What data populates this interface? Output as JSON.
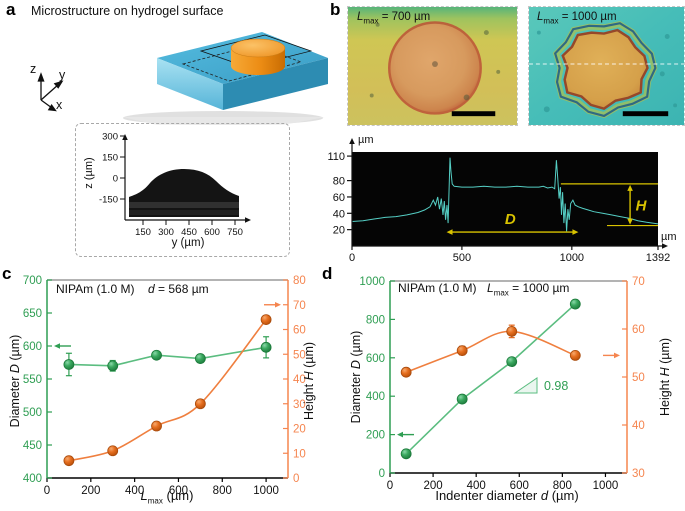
{
  "colors": {
    "green": "#2f9e53",
    "green_line": "#5bbd80",
    "green_dark": "#1b7a3a",
    "orange": "#e2651a",
    "orange_line": "#ef7f3f",
    "orange_axis": "#f5854f",
    "orange_dark": "#a84b0d",
    "cyan_trace": "#55cfc5",
    "yellow_annot": "#d9c300",
    "gray_spine": "#9a9a9a"
  },
  "texts": {
    "panel_a_label": "a",
    "panel_b_label": "b",
    "panel_c_label": "c",
    "panel_d_label": "d",
    "a_title": "Microstructure on hydrogel surface",
    "axis_z": "z",
    "axis_y": "y",
    "axis_x": "x",
    "inset_ylabel": "z (µm)",
    "inset_xlabel": "y (µm)",
    "b1_sym": "L",
    "b1_sub": "max",
    "b1_rest": " = 700 µm",
    "b2_sym": "L",
    "b2_sub": "max",
    "b2_rest": " = 1000 µm",
    "c_nipam": "NIPAm (1.0 M)",
    "c_d_sym": "d",
    "c_d_rest": " = 568 µm",
    "d_nipam": "NIPAm (1.0 M)",
    "d_l_sym": "L",
    "d_l_sub": "max",
    "d_l_rest": " = 1000 µm",
    "diam_pre": "Diameter ",
    "diam_sym": "D",
    "diam_post": " (µm)",
    "height_pre": "Height ",
    "height_sym": "H",
    "height_post": " (µm)",
    "c_x_sym": "L",
    "c_x_sub": "max",
    "c_x_rest": " (µm)",
    "d_x_pre": "Indenter diameter ",
    "d_x_sym": "d",
    "d_x_post": " (µm)"
  },
  "chart_data": {
    "inset_a": {
      "type": "area",
      "description": "Cross-section profile image of microstructure bump on hydrogel",
      "ylabel": "z (µm)",
      "xlabel": "y (µm)",
      "yticks": [
        300,
        150,
        0,
        -150
      ],
      "xticks": [
        150,
        300,
        450,
        600,
        750
      ]
    },
    "profile_b": {
      "type": "line",
      "description": "Surface height profile across microstructure",
      "unit_y": "µm",
      "unit_x": "µm",
      "ylim": [
        0,
        115
      ],
      "yticks": [
        110,
        80,
        60,
        40,
        20
      ],
      "xlim": [
        0,
        1392
      ],
      "xticks": [
        0,
        500,
        1000,
        1392
      ],
      "trace": [
        [
          0,
          30
        ],
        [
          50,
          31
        ],
        [
          100,
          33
        ],
        [
          150,
          35
        ],
        [
          200,
          36
        ],
        [
          250,
          38
        ],
        [
          300,
          41
        ],
        [
          330,
          44
        ],
        [
          355,
          48
        ],
        [
          370,
          56
        ],
        [
          380,
          50
        ],
        [
          390,
          60
        ],
        [
          398,
          45
        ],
        [
          406,
          58
        ],
        [
          414,
          38
        ],
        [
          420,
          55
        ],
        [
          426,
          32
        ],
        [
          432,
          50
        ],
        [
          437,
          28
        ],
        [
          441,
          62
        ],
        [
          446,
          108
        ],
        [
          450,
          92
        ],
        [
          456,
          76
        ],
        [
          465,
          73
        ],
        [
          500,
          72
        ],
        [
          550,
          72
        ],
        [
          600,
          73
        ],
        [
          650,
          72
        ],
        [
          700,
          72
        ],
        [
          750,
          73
        ],
        [
          800,
          72
        ],
        [
          850,
          72
        ],
        [
          870,
          73
        ],
        [
          890,
          71
        ],
        [
          910,
          72
        ],
        [
          922,
          70
        ],
        [
          930,
          105
        ],
        [
          936,
          82
        ],
        [
          942,
          58
        ],
        [
          948,
          72
        ],
        [
          953,
          38
        ],
        [
          958,
          66
        ],
        [
          964,
          28
        ],
        [
          970,
          52
        ],
        [
          976,
          18
        ],
        [
          982,
          45
        ],
        [
          988,
          32
        ],
        [
          995,
          52
        ],
        [
          1005,
          56
        ],
        [
          1015,
          50
        ],
        [
          1030,
          48
        ],
        [
          1050,
          46
        ],
        [
          1075,
          44
        ],
        [
          1100,
          42
        ],
        [
          1140,
          40
        ],
        [
          1180,
          38
        ],
        [
          1220,
          36
        ],
        [
          1260,
          34
        ],
        [
          1300,
          31
        ],
        [
          1340,
          29
        ],
        [
          1392,
          27
        ]
      ],
      "annotations": {
        "D": {
          "label": "D",
          "x1": 430,
          "x2": 1030,
          "y": 17
        },
        "H": {
          "label": "H",
          "y_top": 76,
          "y_bottom": 25,
          "x_arrow": 1265,
          "line_top_x": 950,
          "line_bottom_x": 1160
        }
      }
    },
    "panel_c": {
      "type": "line",
      "annotations": [
        "NIPAm (1.0 M)",
        "d = 568 µm"
      ],
      "xlabel": "Lmax (µm)",
      "xlim": [
        0,
        1100
      ],
      "xticks": [
        0,
        200,
        400,
        600,
        800,
        1000
      ],
      "left": {
        "label": "Diameter D (µm)",
        "lim": [
          400,
          700
        ],
        "ticks": [
          400,
          450,
          500,
          550,
          600,
          650,
          700
        ]
      },
      "right": {
        "label": "Height H (µm)",
        "lim": [
          0,
          80
        ],
        "ticks": [
          0,
          10,
          20,
          30,
          40,
          50,
          60,
          70,
          80
        ]
      },
      "series": [
        {
          "name": "Diameter D",
          "axis": "left",
          "color": "green",
          "smooth": false,
          "x": [
            100,
            300,
            500,
            700,
            1000
          ],
          "y": [
            572,
            570,
            586,
            581,
            598
          ],
          "yerr": [
            17,
            8,
            4,
            4,
            16
          ]
        },
        {
          "name": "Height H",
          "axis": "right",
          "color": "orange",
          "smooth": true,
          "x": [
            100,
            300,
            500,
            700,
            1000
          ],
          "y": [
            7,
            11,
            21,
            30,
            64
          ],
          "yerr": [
            0.8,
            0.8,
            0.8,
            1,
            1
          ]
        }
      ],
      "axis_arrows": [
        {
          "axis": "left",
          "value": 600,
          "dir": "left"
        },
        {
          "axis": "right",
          "value": 70,
          "dir": "right"
        }
      ]
    },
    "panel_d": {
      "type": "line",
      "annotations": [
        "NIPAm (1.0 M)",
        "Lmax = 1000 µm"
      ],
      "xlabel": "Indenter diameter d (µm)",
      "xlim": [
        0,
        1100
      ],
      "xticks": [
        0,
        200,
        400,
        600,
        800,
        1000
      ],
      "left": {
        "label": "Diameter D (µm)",
        "lim": [
          0,
          1000
        ],
        "ticks": [
          0,
          200,
          400,
          600,
          800,
          1000
        ]
      },
      "right": {
        "label": "Height H (µm)",
        "lim": [
          30,
          70
        ],
        "ticks": [
          30,
          40,
          50,
          60,
          70
        ]
      },
      "series": [
        {
          "name": "Diameter D",
          "axis": "left",
          "color": "green",
          "smooth": false,
          "x": [
            75,
            335,
            565,
            860
          ],
          "y": [
            100,
            385,
            580,
            880
          ],
          "yerr": [
            10,
            18,
            15,
            10
          ]
        },
        {
          "name": "Height H",
          "axis": "right",
          "color": "orange",
          "smooth": true,
          "x": [
            75,
            335,
            565,
            860
          ],
          "y": [
            51,
            55.5,
            59.5,
            54.5
          ],
          "yerr": [
            0.6,
            0.9,
            1.3,
            0.5
          ]
        }
      ],
      "axis_arrows": [
        {
          "axis": "left",
          "value": 200,
          "dir": "left"
        },
        {
          "axis": "right",
          "value": 54.5,
          "dir": "right"
        }
      ],
      "slope_annotation": {
        "label": "0.98"
      }
    }
  }
}
